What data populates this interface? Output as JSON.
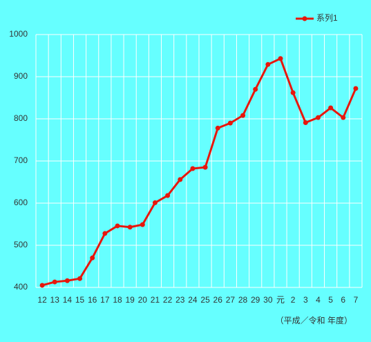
{
  "chart_data": {
    "type": "line",
    "categories": [
      "12",
      "13",
      "14",
      "15",
      "16",
      "17",
      "18",
      "19",
      "20",
      "21",
      "22",
      "23",
      "24",
      "25",
      "26",
      "27",
      "28",
      "29",
      "30",
      "元",
      "2",
      "3",
      "4",
      "5",
      "6",
      "7"
    ],
    "series": [
      {
        "name": "系列1",
        "color": "#e8160c",
        "values": [
          405,
          413,
          416,
          421,
          470,
          528,
          546,
          543,
          549,
          601,
          618,
          656,
          682,
          685,
          778,
          790,
          808,
          870,
          929,
          943,
          862,
          791,
          803,
          826,
          803,
          872
        ]
      }
    ],
    "ylim": [
      400,
      1000
    ],
    "yticks": [
      400,
      500,
      600,
      700,
      800,
      900,
      1000
    ],
    "grid": true,
    "legend": "top-right",
    "x_label": "（平成／令和 年度）"
  }
}
